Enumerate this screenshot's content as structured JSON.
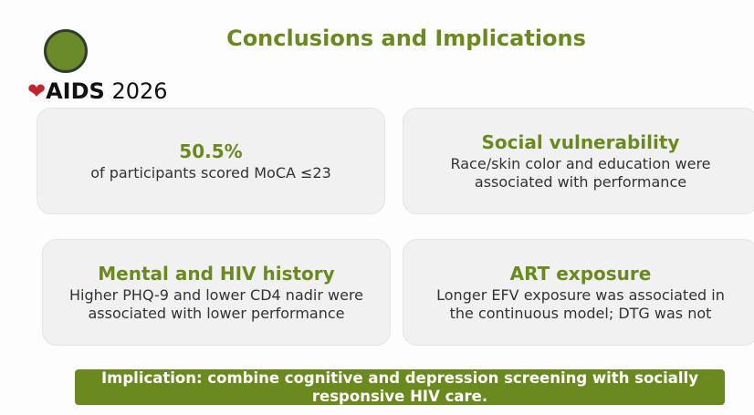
{
  "header": {
    "title": "Conclusions and Implications",
    "logo_text": "AIDS",
    "logo_year": "2026"
  },
  "cards": [
    {
      "title": "50.5%",
      "text": "of participants scored MoCA ≤23"
    },
    {
      "title": "Social vulnerability",
      "text": "Race/skin color and education were associated with performance"
    },
    {
      "title": "Mental and HIV history",
      "text": "Higher PHQ-9 and lower CD4 nadir were associated with lower performance"
    },
    {
      "title": "ART exposure",
      "text": "Longer EFV exposure was associated in the continuous model; DTG was not"
    }
  ],
  "implication": "Implication: combine cognitive and depression screening with socially responsive HIV care."
}
